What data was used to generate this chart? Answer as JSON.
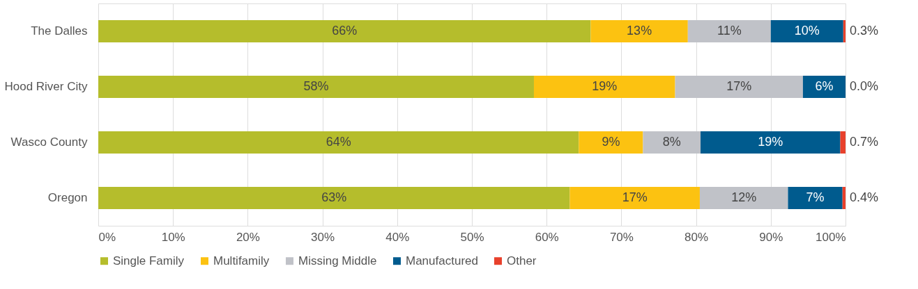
{
  "chart_data": {
    "type": "bar",
    "orientation": "horizontal",
    "stacked": true,
    "categories": [
      "The Dalles",
      "Hood River City",
      "Wasco County",
      "Oregon"
    ],
    "series": [
      {
        "name": "Single Family",
        "color": "#b5bd2c",
        "values": [
          65.9,
          58.3,
          64.3,
          63.1
        ],
        "value_labels": [
          "66%",
          "58%",
          "64%",
          "63%"
        ]
      },
      {
        "name": "Multifamily",
        "color": "#fcc211",
        "values": [
          13.0,
          18.9,
          8.6,
          17.4
        ],
        "value_labels": [
          "13%",
          "19%",
          "9%",
          "17%"
        ]
      },
      {
        "name": "Missing Middle",
        "color": "#c0c2c8",
        "values": [
          11.1,
          17.1,
          7.7,
          11.8
        ],
        "value_labels": [
          "11%",
          "17%",
          "8%",
          "12%"
        ]
      },
      {
        "name": "Manufactured",
        "color": "#005b8e",
        "values": [
          9.7,
          5.7,
          18.7,
          7.3
        ],
        "value_labels": [
          "10%",
          "6%",
          "19%",
          "7%"
        ]
      },
      {
        "name": "Other",
        "color": "#e8412c",
        "values": [
          0.3,
          0.0,
          0.7,
          0.4
        ],
        "value_labels": [
          "0.3%",
          "0.0%",
          "0.7%",
          "0.4%"
        ]
      }
    ],
    "xlim": [
      0,
      100
    ],
    "xticks": [
      {
        "value": 0,
        "label": "0%"
      },
      {
        "value": 10,
        "label": "10%"
      },
      {
        "value": 20,
        "label": "20%"
      },
      {
        "value": 30,
        "label": "30%"
      },
      {
        "value": 40,
        "label": "40%"
      },
      {
        "value": 50,
        "label": "50%"
      },
      {
        "value": 60,
        "label": "60%"
      },
      {
        "value": 70,
        "label": "70%"
      },
      {
        "value": 80,
        "label": "80%"
      },
      {
        "value": 90,
        "label": "90%"
      },
      {
        "value": 100,
        "label": "100%"
      }
    ],
    "grid": "x",
    "legend": "bottom"
  }
}
